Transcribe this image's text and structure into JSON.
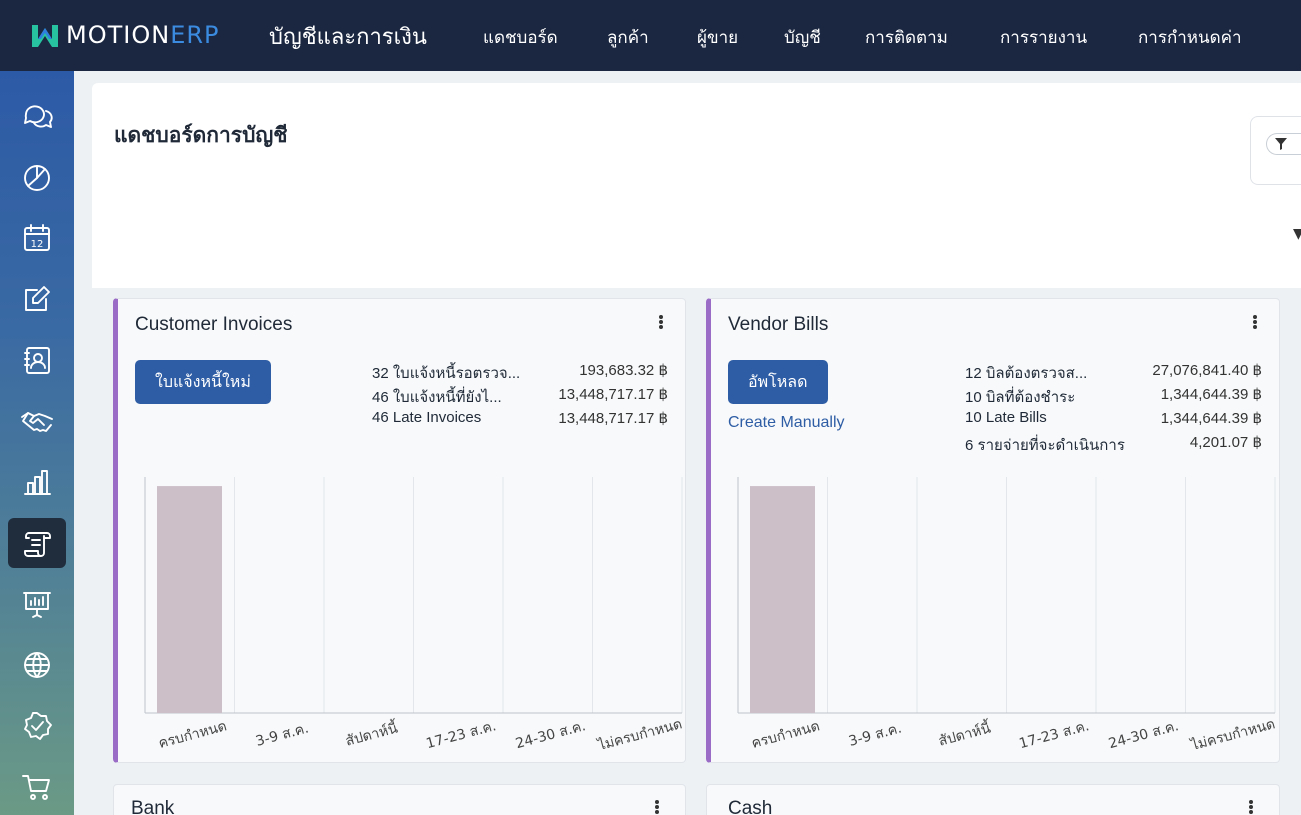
{
  "brand": {
    "name_part1": "MOTION",
    "name_part2": "ERP"
  },
  "header": {
    "app_title": "บัญชีและการเงิน",
    "menu": [
      "แดชบอร์ด",
      "ลูกค้า",
      "ผู้ขาย",
      "บัญชี",
      "การติดตาม",
      "การรายงาน",
      "การกำหนดค่า"
    ]
  },
  "sidebar": {
    "items": [
      "chat-icon",
      "pie-chart-icon",
      "calendar-icon",
      "edit-icon",
      "contacts-icon",
      "handshake-icon",
      "bar-chart-icon",
      "scroll-icon",
      "presentation-icon",
      "globe-icon",
      "badge-check-icon",
      "cart-icon"
    ],
    "active_index": 7,
    "calendar_day": "12"
  },
  "page": {
    "title": "แดชบอร์ดการบัญชี"
  },
  "colors": {
    "nav_bg": "#1b2741",
    "accent": "#9a6cc6",
    "button": "#2e5da5",
    "bar": "#cdbfc8"
  },
  "cards": [
    {
      "title": "Customer Invoices",
      "button_label": "ใบแจ้งหนี้ใหม่",
      "link_label": "",
      "stats": [
        {
          "label": "32 ใบแจ้งหนี้รอตรวจ...",
          "value": "193,683.32 ฿"
        },
        {
          "label": "46 ใบแจ้งหนี้ที่ยังไ...",
          "value": "13,448,717.17 ฿"
        },
        {
          "label": "46 Late Invoices",
          "value": "13,448,717.17 ฿"
        }
      ]
    },
    {
      "title": "Vendor Bills",
      "button_label": "อัพโหลด",
      "link_label": "Create Manually",
      "stats": [
        {
          "label": "12 บิลต้องตรวจส...",
          "value": "27,076,841.40 ฿"
        },
        {
          "label": "10 บิลที่ต้องชำระ",
          "value": "1,344,644.39 ฿"
        },
        {
          "label": "10 Late Bills",
          "value": "1,344,644.39 ฿"
        },
        {
          "label": "6 รายจ่ายที่จะดำเนินการ",
          "value": "4,201.07 ฿"
        }
      ]
    }
  ],
  "lower_cards": [
    "Bank",
    "Cash"
  ],
  "chart_data": [
    {
      "type": "bar",
      "categories": [
        "ครบกำหนด",
        "3-9 ส.ค.",
        "สัปดาห์นี้",
        "17-23 ส.ค.",
        "24-30 ส.ค.",
        "ไม่ครบกำหนด"
      ],
      "values": [
        1,
        0,
        0,
        0,
        0,
        0
      ],
      "ylim": [
        0,
        1.04
      ],
      "grid": true
    },
    {
      "type": "bar",
      "categories": [
        "ครบกำหนด",
        "3-9 ส.ค.",
        "สัปดาห์นี้",
        "17-23 ส.ค.",
        "24-30 ส.ค.",
        "ไม่ครบกำหนด"
      ],
      "values": [
        1,
        0,
        0,
        0,
        0,
        0
      ],
      "ylim": [
        0,
        1.04
      ],
      "grid": true
    }
  ]
}
